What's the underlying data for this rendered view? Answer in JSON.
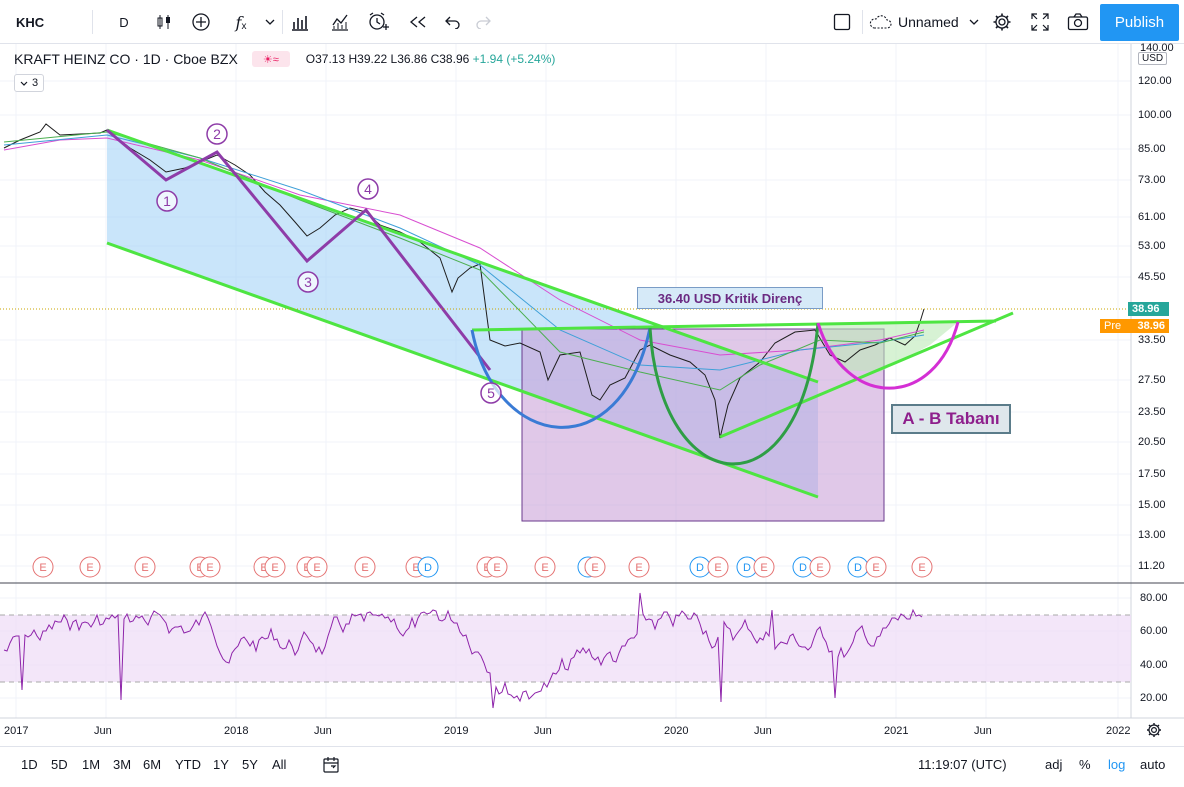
{
  "toolbar": {
    "symbol": "KHC",
    "interval": "D",
    "layout_name": "Unnamed",
    "publish_label": "Publish"
  },
  "legend": {
    "title": "KRAFT HEINZ CO · 1D · Cboe BZX",
    "open": "O37.13",
    "high": "H39.22",
    "low": "L36.86",
    "close": "C38.96",
    "change": "+1.94 (+5.24%)",
    "indicator_count": "3"
  },
  "price_axis": {
    "currency": "USD",
    "top_label": "140.00",
    "ticks": [
      "120.00",
      "100.00",
      "85.00",
      "73.00",
      "61.00",
      "53.00",
      "45.50",
      "33.50",
      "27.50",
      "23.50",
      "20.50",
      "17.50",
      "15.00",
      "13.00",
      "11.20"
    ],
    "last_price": "38.96",
    "pre_label": "Pre",
    "pre_price": "38.96"
  },
  "rsi_axis": {
    "ticks": [
      "80.00",
      "60.00",
      "40.00",
      "20.00"
    ]
  },
  "time_axis": {
    "labels": [
      "2017",
      "Jun",
      "2018",
      "Jun",
      "2019",
      "Jun",
      "2020",
      "Jun",
      "2021",
      "Jun",
      "2022"
    ]
  },
  "annotations": {
    "resistance_label": "36.40 USD Kritik Direnç",
    "ab_label": "A - B Tabanı",
    "wave_labels": [
      "1",
      "2",
      "3",
      "4",
      "5"
    ]
  },
  "events": [
    "E",
    "E",
    "E",
    "E",
    "E",
    "E",
    "E",
    "E",
    "E",
    "E",
    "E",
    "D",
    "E",
    "E",
    "E",
    "D",
    "E",
    "E",
    "D",
    "E",
    "D",
    "E",
    "D",
    "E",
    "D",
    "E",
    "E"
  ],
  "bottom_bar": {
    "ranges": [
      "1D",
      "5D",
      "1M",
      "3M",
      "6M",
      "YTD",
      "1Y",
      "5Y",
      "All"
    ],
    "clock": "11:19:07 (UTC)",
    "adj": "adj",
    "percent": "%",
    "log": "log",
    "auto": "auto"
  },
  "colors": {
    "accent": "#2196f3",
    "green_line": "#4ee542",
    "wave": "#8e3ca8",
    "rsi": "#8e24aa",
    "price_tag": "#26a69a",
    "pre_tag": "#ff9800"
  }
}
